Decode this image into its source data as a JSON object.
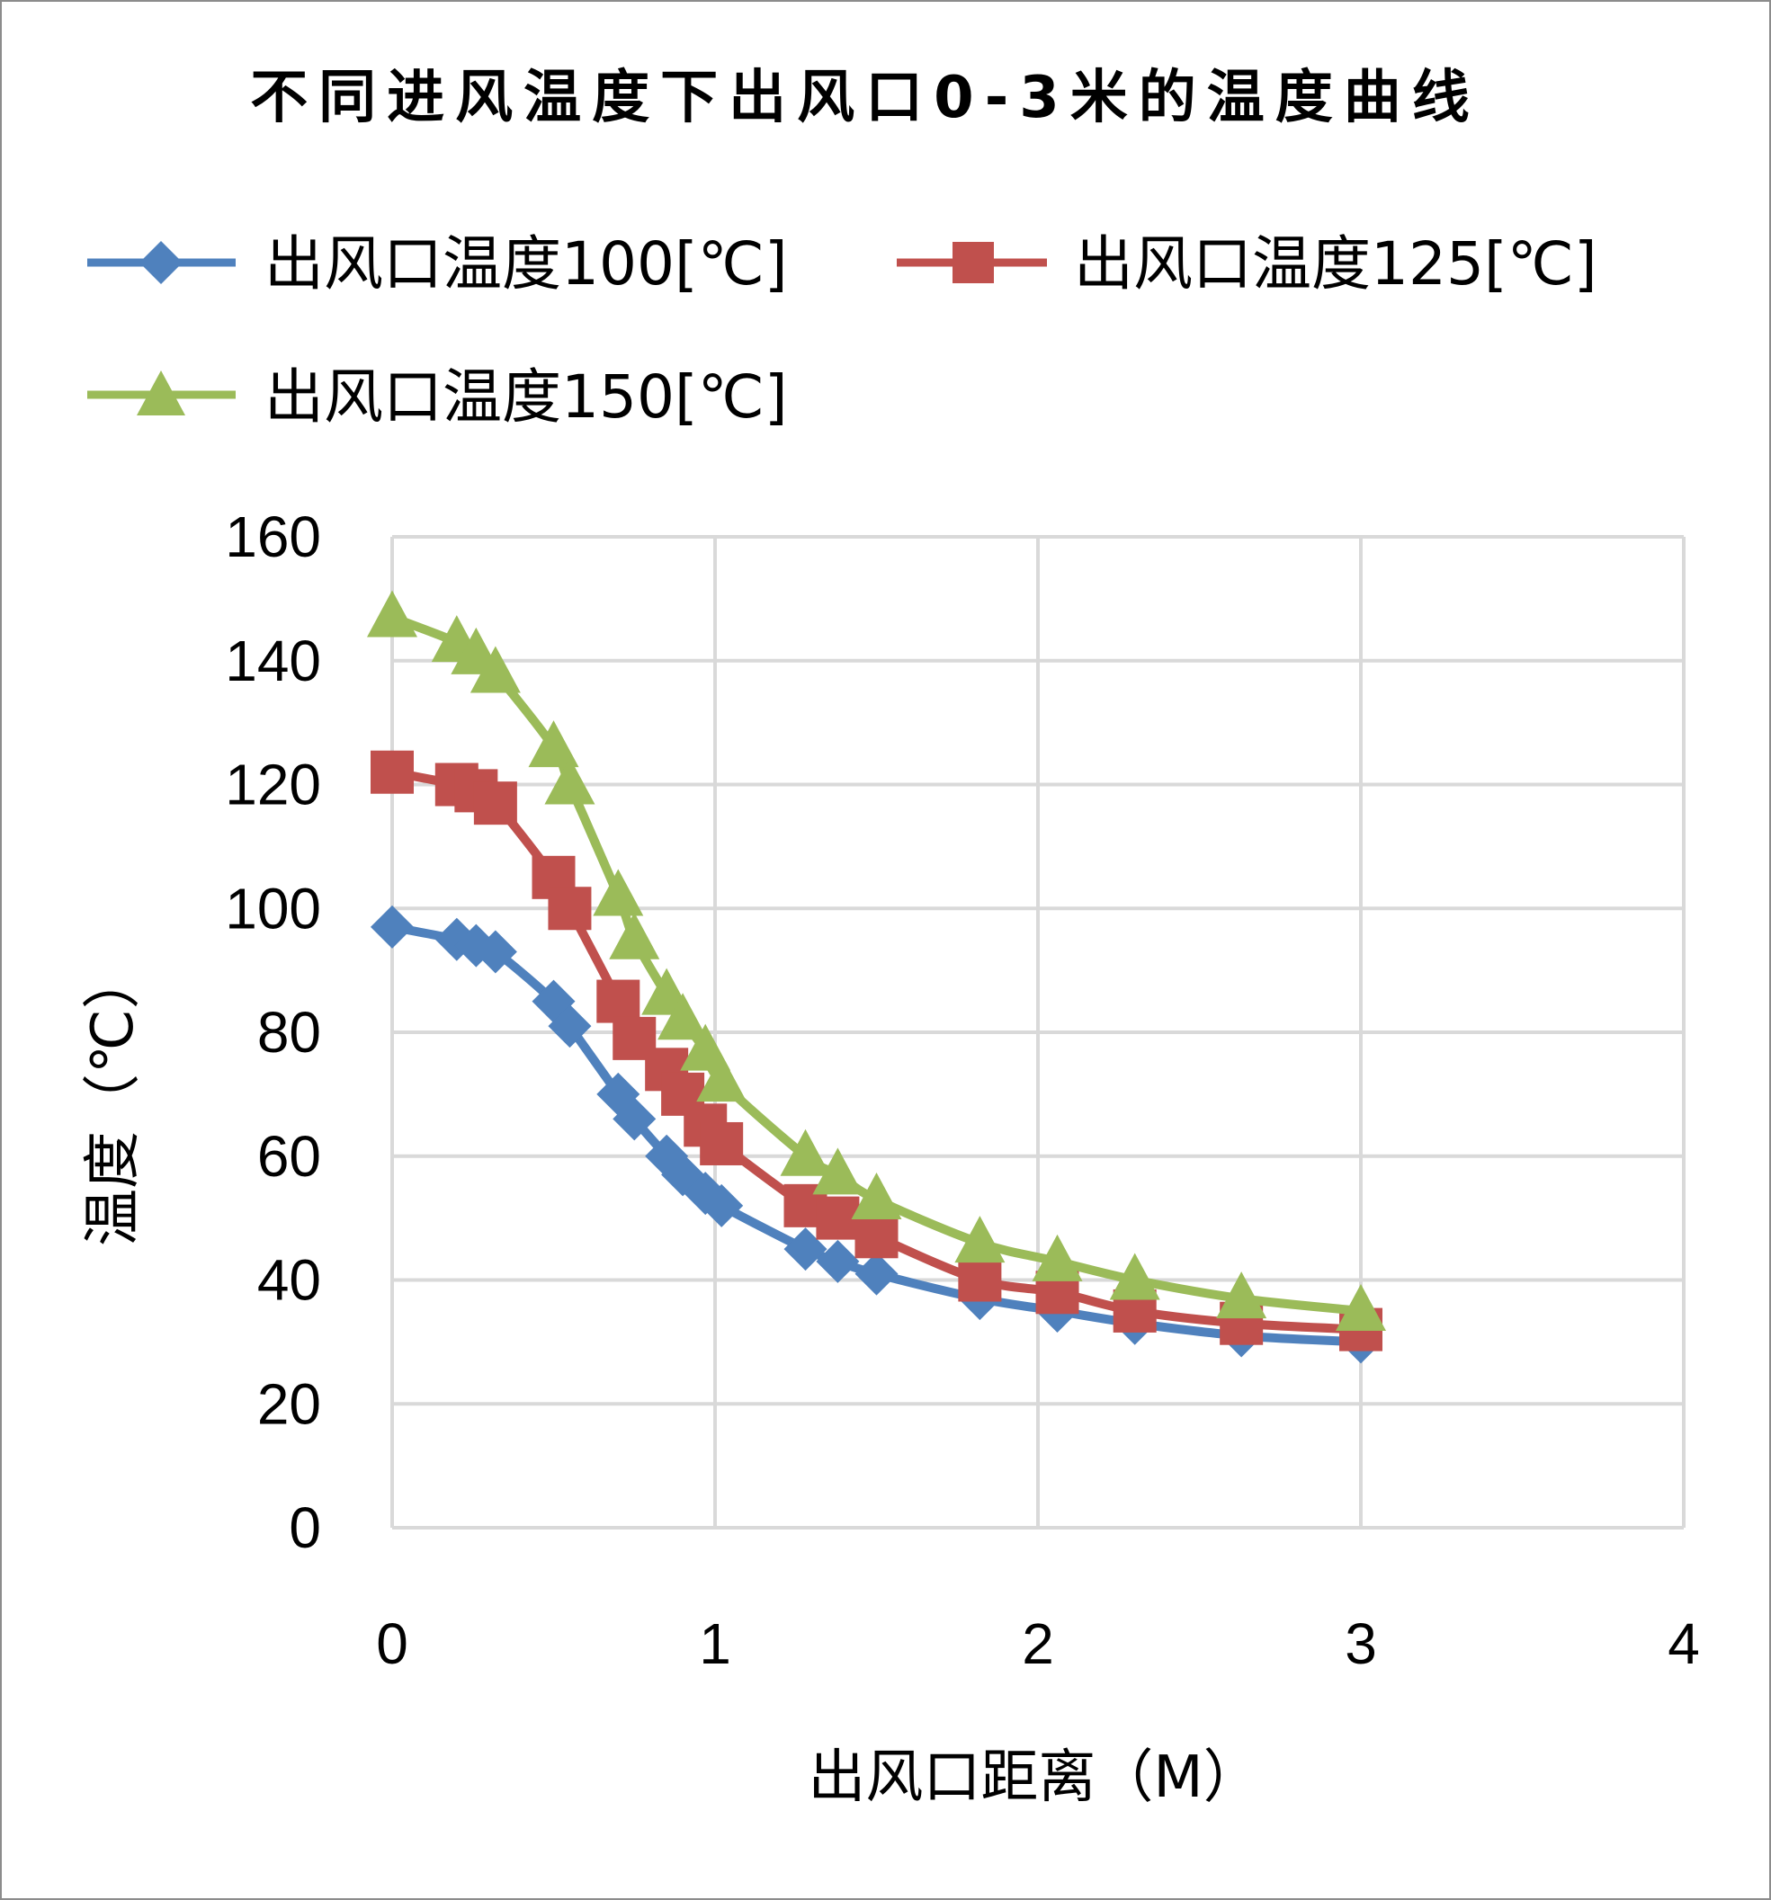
{
  "chart_data": {
    "type": "scatter",
    "title": "不同进风温度下出风口0-3米的温度曲线",
    "xlabel": "出风口距离（M）",
    "ylabel": "温度（℃）",
    "xlim": [
      0,
      4
    ],
    "ylim": [
      0,
      160
    ],
    "x_ticks": [
      "0",
      "1",
      "2",
      "3",
      "4"
    ],
    "y_ticks": [
      "0",
      "20",
      "40",
      "60",
      "80",
      "100",
      "120",
      "140",
      "160"
    ],
    "grid": true,
    "legend_position": "top",
    "series": [
      {
        "name": "出风口温度100[℃]",
        "color": "#4f81bd",
        "marker": "diamond",
        "x": [
          0,
          0.2,
          0.26,
          0.32,
          0.5,
          0.55,
          0.7,
          0.75,
          0.85,
          0.9,
          0.97,
          1.02,
          1.28,
          1.38,
          1.5,
          1.82,
          2.06,
          2.3,
          2.63,
          3.0
        ],
        "y": [
          97,
          95,
          94,
          93,
          85,
          81,
          70,
          66,
          60,
          57,
          54,
          52,
          45,
          43,
          41,
          37,
          35,
          33,
          31,
          30
        ]
      },
      {
        "name": "出风口温度125[℃]",
        "color": "#c0504d",
        "marker": "square",
        "x": [
          0,
          0.2,
          0.26,
          0.32,
          0.5,
          0.55,
          0.7,
          0.75,
          0.85,
          0.9,
          0.97,
          1.02,
          1.28,
          1.38,
          1.5,
          1.82,
          2.06,
          2.3,
          2.63,
          3.0
        ],
        "y": [
          122,
          120,
          119,
          117,
          105,
          100,
          85,
          79,
          74,
          70,
          65,
          62,
          52,
          50,
          47,
          40,
          38,
          35,
          33,
          32
        ]
      },
      {
        "name": "出风口温度150[℃]",
        "color": "#9bbb59",
        "marker": "triangle",
        "x": [
          0,
          0.2,
          0.26,
          0.32,
          0.5,
          0.55,
          0.7,
          0.75,
          0.85,
          0.9,
          0.97,
          1.02,
          1.28,
          1.38,
          1.5,
          1.82,
          2.06,
          2.3,
          2.63,
          3.0
        ],
        "y": [
          147,
          143,
          141,
          138,
          126,
          120,
          102,
          95,
          86,
          82,
          77,
          72,
          60,
          57,
          53,
          46,
          43,
          40,
          37,
          35
        ]
      }
    ]
  }
}
